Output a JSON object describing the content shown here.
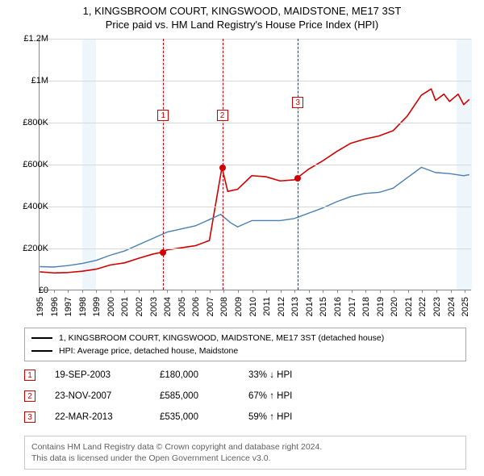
{
  "title_line1": "1, KINGSBROOM COURT, KINGSWOOD, MAIDSTONE, ME17 3ST",
  "title_line2": "Price paid vs. HM Land Registry's House Price Index (HPI)",
  "chart": {
    "type": "line",
    "x_years": [
      1995,
      1996,
      1997,
      1998,
      1999,
      2000,
      2001,
      2002,
      2003,
      2004,
      2005,
      2006,
      2007,
      2008,
      2009,
      2010,
      2011,
      2012,
      2013,
      2014,
      2015,
      2016,
      2017,
      2018,
      2019,
      2020,
      2021,
      2022,
      2023,
      2024,
      2025
    ],
    "xlim": [
      1995,
      2025.5
    ],
    "ylim": [
      0,
      1200000
    ],
    "ytick_step": 200000,
    "ytick_labels": [
      "£0",
      "£200K",
      "£400K",
      "£600K",
      "£800K",
      "£1M",
      "£1.2M"
    ],
    "grid_color": "#d8d8d8",
    "axis_color": "#888888",
    "background_bands": [
      {
        "from": 1998.0,
        "to": 1999.0,
        "color": "#eef5fb"
      },
      {
        "from": 2003.6,
        "to": 2004.0,
        "color": "#f3f9ff"
      },
      {
        "from": 2007.8,
        "to": 2008.0,
        "color": "#f3f9ff"
      },
      {
        "from": 2013.1,
        "to": 2013.4,
        "color": "#f3f9ff"
      },
      {
        "from": 2024.4,
        "to": 2025.5,
        "color": "#eef5fb"
      }
    ],
    "series": [
      {
        "name": "price_paid",
        "label": "1, KINGSBROOM COURT, KINGSWOOD, MAIDSTONE, ME17 3ST (detached house)",
        "color": "#d00000",
        "width": 1.6,
        "points": [
          [
            1995.0,
            85000
          ],
          [
            1996.0,
            80000
          ],
          [
            1997.0,
            82000
          ],
          [
            1998.0,
            88000
          ],
          [
            1999.0,
            98000
          ],
          [
            2000.0,
            118000
          ],
          [
            2001.0,
            128000
          ],
          [
            2002.0,
            150000
          ],
          [
            2003.0,
            170000
          ],
          [
            2003.72,
            180000
          ],
          [
            2004.0,
            190000
          ],
          [
            2005.0,
            200000
          ],
          [
            2006.0,
            210000
          ],
          [
            2007.0,
            235000
          ],
          [
            2007.89,
            585000
          ],
          [
            2008.3,
            470000
          ],
          [
            2009.0,
            480000
          ],
          [
            2010.0,
            545000
          ],
          [
            2011.0,
            540000
          ],
          [
            2012.0,
            520000
          ],
          [
            2013.0,
            525000
          ],
          [
            2013.22,
            535000
          ],
          [
            2014.0,
            575000
          ],
          [
            2015.0,
            615000
          ],
          [
            2016.0,
            660000
          ],
          [
            2017.0,
            700000
          ],
          [
            2018.0,
            720000
          ],
          [
            2019.0,
            735000
          ],
          [
            2020.0,
            760000
          ],
          [
            2021.0,
            830000
          ],
          [
            2022.0,
            930000
          ],
          [
            2022.7,
            960000
          ],
          [
            2023.0,
            905000
          ],
          [
            2023.6,
            935000
          ],
          [
            2024.0,
            900000
          ],
          [
            2024.6,
            935000
          ],
          [
            2025.0,
            885000
          ],
          [
            2025.4,
            910000
          ]
        ]
      },
      {
        "name": "hpi",
        "label": "HPI: Average price, detached house, Maidstone",
        "color": "#4a7fb0",
        "width": 1.4,
        "points": [
          [
            1995.0,
            110000
          ],
          [
            1996.0,
            108000
          ],
          [
            1997.0,
            115000
          ],
          [
            1998.0,
            125000
          ],
          [
            1999.0,
            140000
          ],
          [
            2000.0,
            165000
          ],
          [
            2001.0,
            185000
          ],
          [
            2002.0,
            215000
          ],
          [
            2003.0,
            245000
          ],
          [
            2004.0,
            275000
          ],
          [
            2005.0,
            290000
          ],
          [
            2006.0,
            305000
          ],
          [
            2007.0,
            335000
          ],
          [
            2007.8,
            360000
          ],
          [
            2008.5,
            320000
          ],
          [
            2009.0,
            300000
          ],
          [
            2010.0,
            330000
          ],
          [
            2011.0,
            330000
          ],
          [
            2012.0,
            330000
          ],
          [
            2013.0,
            340000
          ],
          [
            2014.0,
            365000
          ],
          [
            2015.0,
            390000
          ],
          [
            2016.0,
            420000
          ],
          [
            2017.0,
            445000
          ],
          [
            2018.0,
            460000
          ],
          [
            2019.0,
            465000
          ],
          [
            2020.0,
            485000
          ],
          [
            2021.0,
            535000
          ],
          [
            2022.0,
            585000
          ],
          [
            2023.0,
            560000
          ],
          [
            2024.0,
            555000
          ],
          [
            2025.0,
            545000
          ],
          [
            2025.4,
            550000
          ]
        ]
      }
    ],
    "events": [
      {
        "n": "1",
        "year": 2003.72,
        "price": 180000,
        "box_top_offset": 88
      },
      {
        "n": "2",
        "year": 2007.89,
        "price": 585000,
        "box_top_offset": 88
      },
      {
        "n": "3",
        "year": 2013.22,
        "price": 535000,
        "box_top_offset": 72
      }
    ],
    "title_fontsize": 13,
    "tick_fontsize": 11
  },
  "legend": {
    "items": [
      {
        "color": "#d00000",
        "label": "1, KINGSBROOM COURT, KINGSWOOD, MAIDSTONE, ME17 3ST (detached house)"
      },
      {
        "color": "#4a7fb0",
        "label": "HPI: Average price, detached house, Maidstone"
      }
    ]
  },
  "events_table": [
    {
      "n": "1",
      "date": "19-SEP-2003",
      "price": "£180,000",
      "delta": "33% ↓ HPI"
    },
    {
      "n": "2",
      "date": "23-NOV-2007",
      "price": "£585,000",
      "delta": "67% ↑ HPI"
    },
    {
      "n": "3",
      "date": "22-MAR-2013",
      "price": "£535,000",
      "delta": "59% ↑ HPI"
    }
  ],
  "footer_line1": "Contains HM Land Registry data © Crown copyright and database right 2024.",
  "footer_line2": "This data is licensed under the Open Government Licence v3.0."
}
